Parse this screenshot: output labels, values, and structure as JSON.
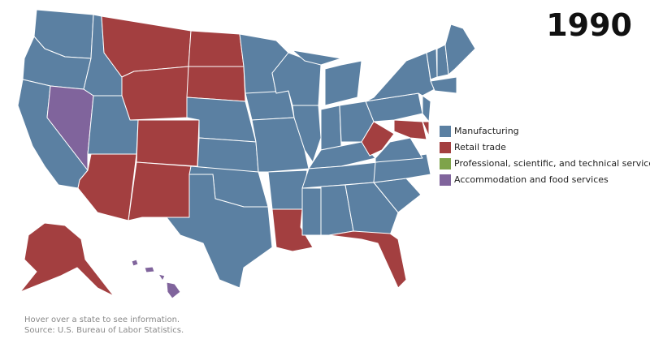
{
  "title": "1990",
  "legend": [
    {
      "label": "Manufacturing",
      "color": "#5b80a2"
    },
    {
      "label": "Retail trade",
      "color": "#a33f40"
    },
    {
      "label": "Professional, scientific, and technical services",
      "color": "#7ea34a"
    },
    {
      "label": "Accommodation and food services",
      "color": "#80649c"
    }
  ],
  "notes": [
    "Hover over a state to see information.",
    "Source: U.S. Bureau of Labor Statistics."
  ]
}
